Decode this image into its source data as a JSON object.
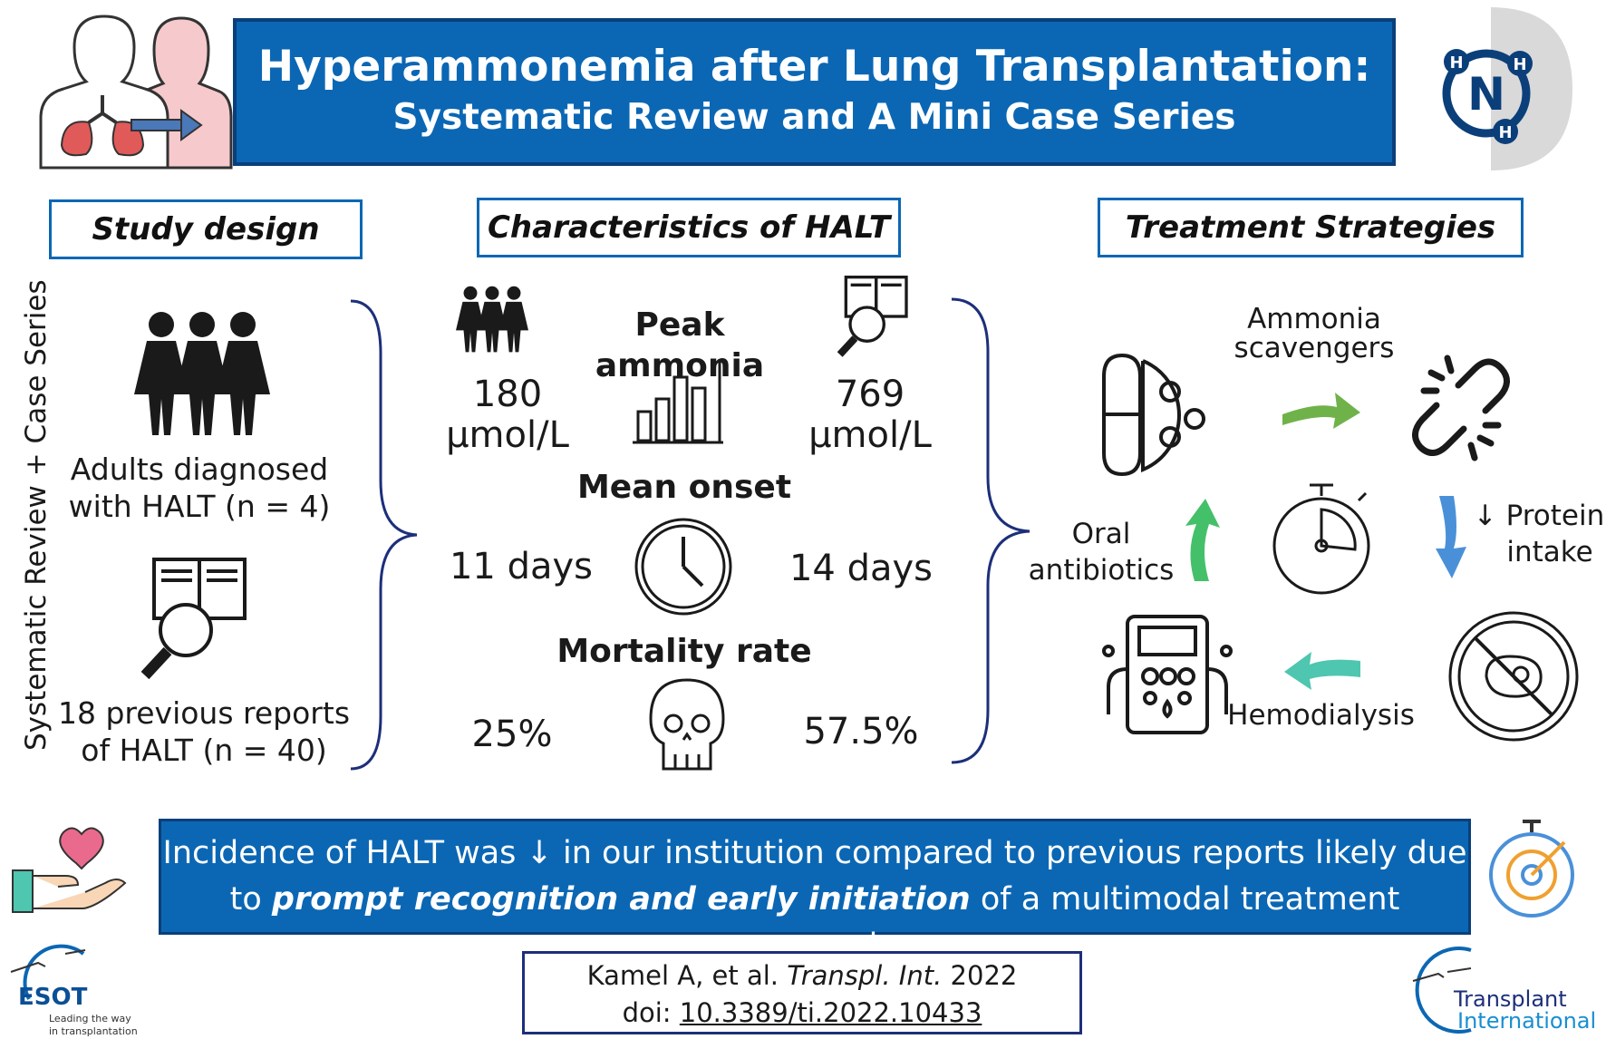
{
  "title": {
    "line1": "Hyperammonemia after Lung Transplantation:",
    "line2": "Systematic Review and A Mini Case Series"
  },
  "study_design": {
    "heading": "Study design",
    "vertical_label": "Systematic Review + Case Series",
    "adults": "Adults diagnosed with HALT (n = 4)",
    "reports": "18 previous reports of HALT (n = 40)"
  },
  "characteristics": {
    "heading": "Characteristics of HALT",
    "peak_label": "Peak ammonia",
    "peak_left_value": "180",
    "peak_left_unit": "μmol/L",
    "peak_right_value": "769",
    "peak_right_unit": "μmol/L",
    "onset_label": "Mean onset",
    "onset_left": "11 days",
    "onset_right": "14 days",
    "mortality_label": "Mortality rate",
    "mortality_left": "25%",
    "mortality_right": "57.5%"
  },
  "treatment": {
    "heading": "Treatment Strategies",
    "scavengers_line1": "Ammonia",
    "scavengers_line2": "scavengers",
    "protein_line1": "↓ Protein",
    "protein_line2": "intake",
    "hemodialysis": "Hemodialysis",
    "antibiotics_line1": "Oral",
    "antibiotics_line2": "antibiotics"
  },
  "conclusion": {
    "line1": "Incidence of HALT was ↓ in our institution compared to previous reports likely due",
    "line2_pre": "to ",
    "line2_emph": "prompt recognition and early initiation",
    "line2_post": " of a multimodal treatment approach"
  },
  "citation": {
    "authors": "Kamel A, et al. ",
    "journal": "Transpl. Int.",
    "year": " 2022",
    "doi_label": "doi: ",
    "doi": "10.3389/ti.2022.10433"
  },
  "logos": {
    "esot_name": "ESOT",
    "esot_tag1": "Leading the way",
    "esot_tag2": "in transplantation",
    "ti_line1": "Transplant",
    "ti_line2": "International"
  },
  "molecule": {
    "n": "N",
    "h": "H"
  },
  "colors": {
    "brand_blue": "#0b67b4",
    "arrow_green": "#6fb24a",
    "arrow_teal": "#4ec6b0",
    "arrow_blue": "#4a90d9",
    "lung_red": "#e05a5a"
  }
}
